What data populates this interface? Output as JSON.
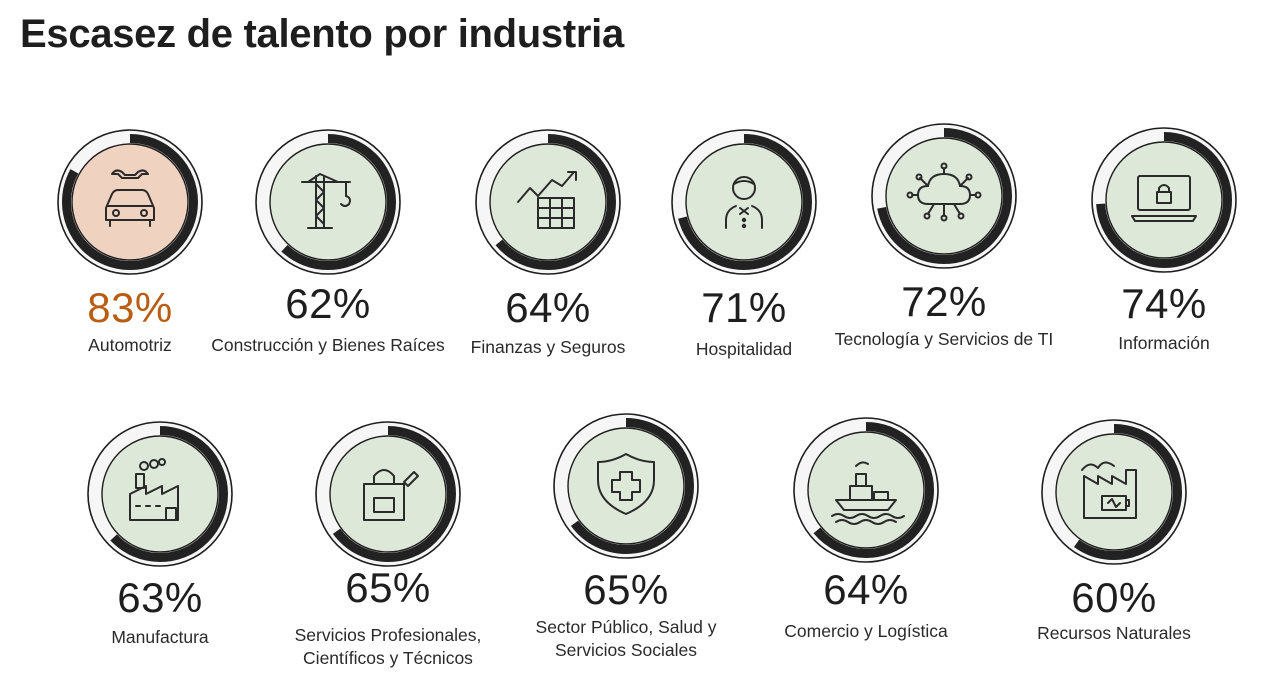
{
  "title": "Escasez de talento por industria",
  "colors": {
    "ring_track": "#f6f6f6",
    "ring_value": "#222222",
    "ring_outline": "#1e1e1e",
    "fill_default": "#dde8d9",
    "fill_highlight": "#f0d2c0",
    "highlight_text": "#b95d14"
  },
  "chart_data": {
    "type": "donut-grid",
    "title": "Escasez de talento por industria",
    "unit": "%",
    "items": [
      {
        "label": "Automotriz",
        "value": 83,
        "value_text": "83%",
        "icon": "car-wrench-icon",
        "highlight": true
      },
      {
        "label": "Construcción y Bienes Raíces",
        "value": 62,
        "value_text": "62%",
        "icon": "crane-icon",
        "highlight": false
      },
      {
        "label": "Finanzas y Seguros",
        "value": 64,
        "value_text": "64%",
        "icon": "growth-chart-icon",
        "highlight": false
      },
      {
        "label": "Hospitalidad",
        "value": 71,
        "value_text": "71%",
        "icon": "waiter-icon",
        "highlight": false
      },
      {
        "label": "Tecnología y Servicios de TI",
        "value": 72,
        "value_text": "72%",
        "icon": "cloud-network-icon",
        "highlight": false
      },
      {
        "label": "Información",
        "value": 74,
        "value_text": "74%",
        "icon": "laptop-lock-icon",
        "highlight": false
      },
      {
        "label": "Manufactura",
        "value": 63,
        "value_text": "63%",
        "icon": "factory-icon",
        "highlight": false
      },
      {
        "label": "Servicios Profesionales, Científicos y Técnicos",
        "value": 65,
        "value_text": "65%",
        "icon": "bag-pen-icon",
        "highlight": false
      },
      {
        "label": "Sector Público, Salud y Servicios Sociales",
        "value": 65,
        "value_text": "65%",
        "icon": "medical-shield-icon",
        "highlight": false
      },
      {
        "label": "Comercio y Logística",
        "value": 64,
        "value_text": "64%",
        "icon": "cargo-ship-icon",
        "highlight": false
      },
      {
        "label": "Recursos Naturales",
        "value": 60,
        "value_text": "60%",
        "icon": "factory-battery-icon",
        "highlight": false
      }
    ]
  }
}
